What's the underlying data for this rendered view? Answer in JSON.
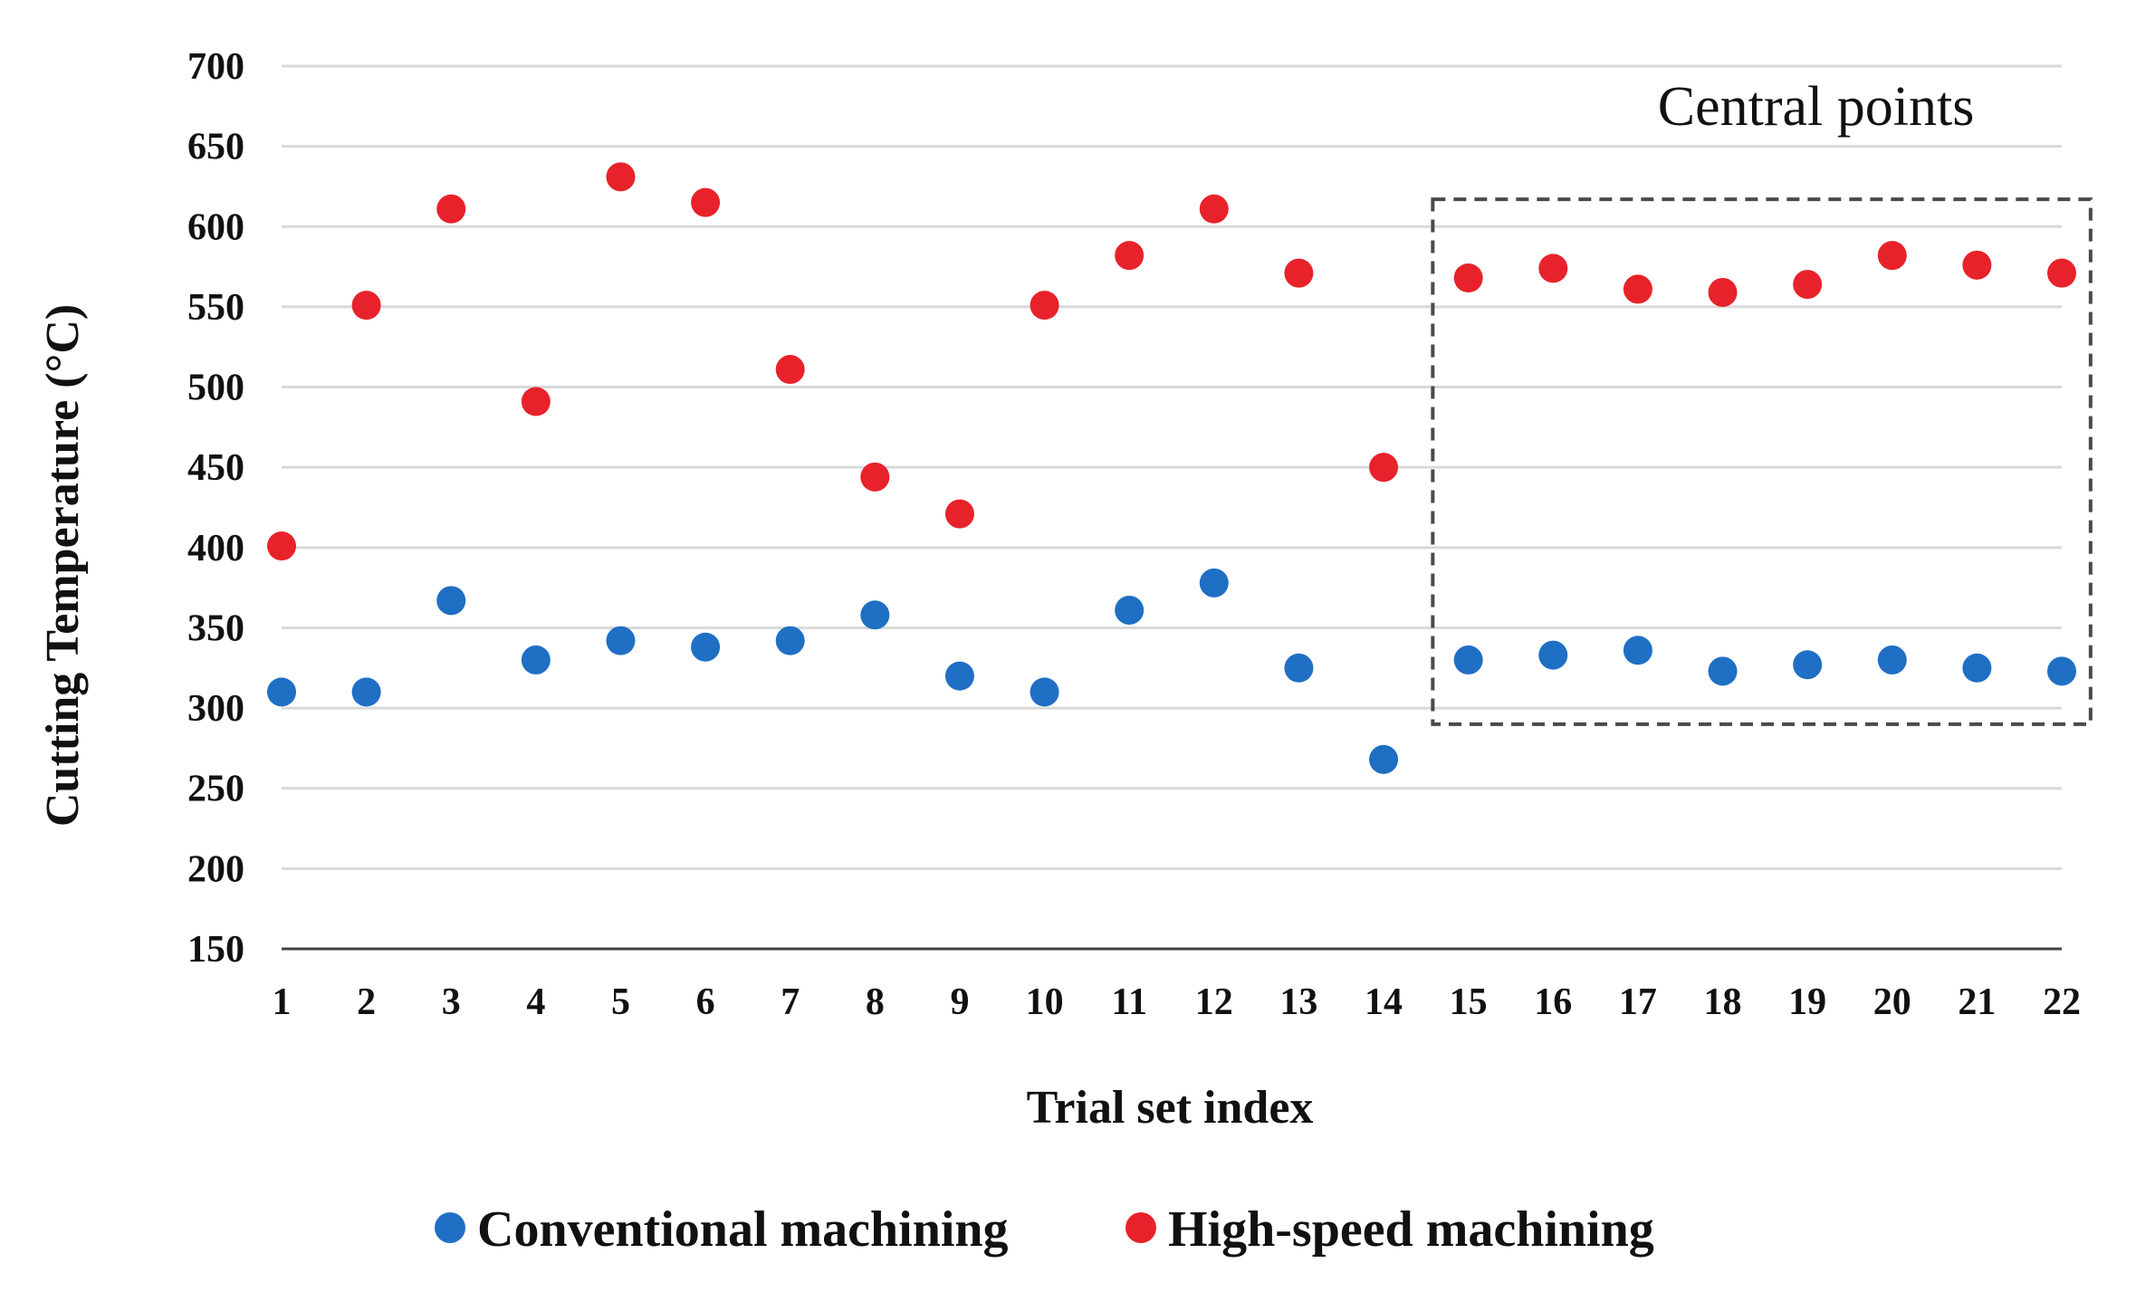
{
  "chart_data": {
    "type": "scatter",
    "title": "",
    "xlabel": "Trial set index",
    "ylabel": "Cutting Temperature (°C)",
    "ylim": [
      150,
      700
    ],
    "yticks": [
      150,
      200,
      250,
      300,
      350,
      400,
      450,
      500,
      550,
      600,
      650,
      700
    ],
    "x": [
      1,
      2,
      3,
      4,
      5,
      6,
      7,
      8,
      9,
      10,
      11,
      12,
      13,
      14,
      15,
      16,
      17,
      18,
      19,
      20,
      21,
      22
    ],
    "grid": true,
    "legend_position": "bottom",
    "series": [
      {
        "name": "Conventional machining",
        "color": "#1f6fc5",
        "values": [
          310,
          310,
          367,
          330,
          342,
          338,
          342,
          358,
          320,
          310,
          361,
          378,
          325,
          268,
          330,
          333,
          336,
          323,
          327,
          330,
          325,
          323
        ]
      },
      {
        "name": "High-speed machining",
        "color": "#e8222a",
        "values": [
          401,
          551,
          611,
          491,
          631,
          615,
          511,
          444,
          421,
          551,
          582,
          611,
          571,
          450,
          568,
          574,
          561,
          559,
          564,
          582,
          576,
          571
        ]
      }
    ],
    "annotation": {
      "text": "Central points",
      "x_range": [
        15,
        22
      ],
      "y_range": [
        290,
        617
      ]
    }
  }
}
